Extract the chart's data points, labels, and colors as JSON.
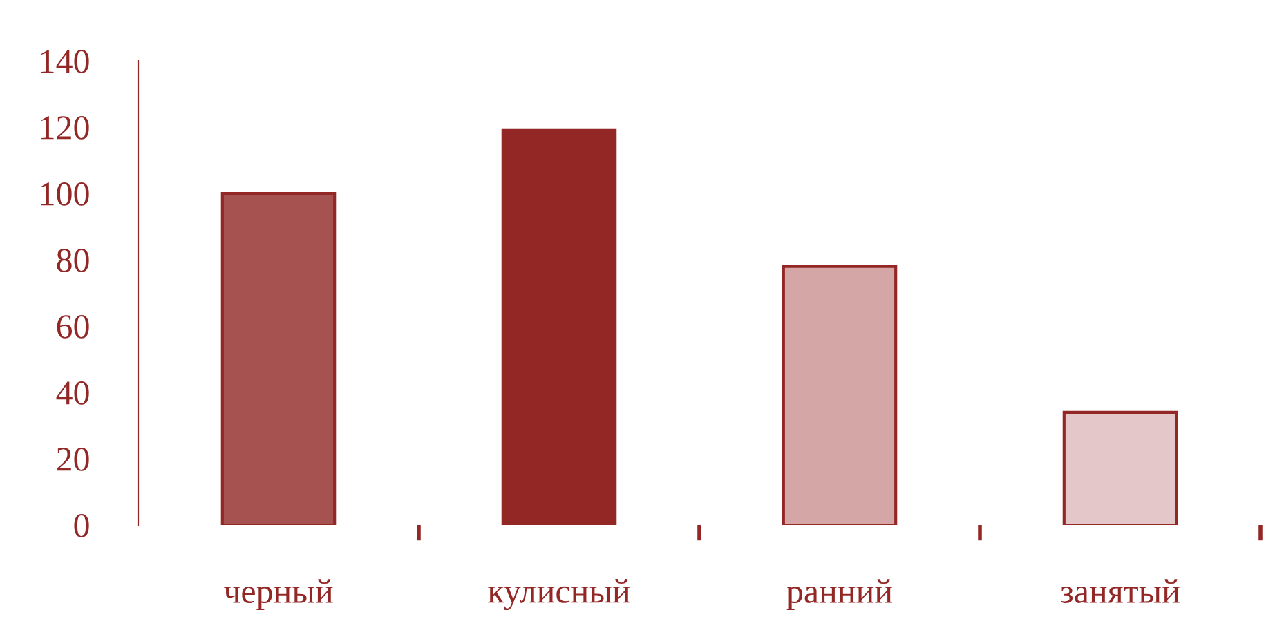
{
  "chart_data": {
    "type": "bar",
    "categories": [
      "черный",
      "кулисный",
      "ранний",
      "занятый"
    ],
    "values": [
      100,
      119,
      78,
      34
    ],
    "colors": [
      "#a65250",
      "#922725",
      "#d4a6a6",
      "#e4c7c8"
    ],
    "ylim": [
      0,
      140
    ],
    "yticks": [
      0,
      20,
      40,
      60,
      80,
      100,
      120,
      140
    ],
    "grid": false,
    "legend": false
  }
}
